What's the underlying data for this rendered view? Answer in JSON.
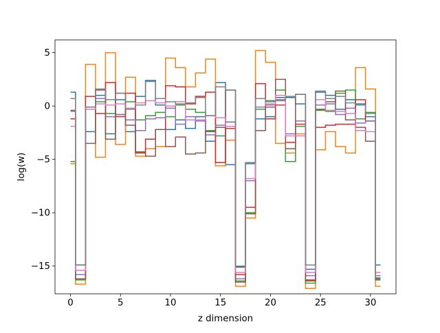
{
  "chart_data": {
    "type": "line",
    "drawstyle": "steps-mid",
    "xlabel": "z dimension",
    "ylabel": "log(w)",
    "xlim": [
      -1.55,
      32.55
    ],
    "ylim": [
      -17.6,
      6.2
    ],
    "xticks": [
      0,
      5,
      10,
      15,
      20,
      25,
      30
    ],
    "yticks": [
      5,
      0,
      -5,
      -10,
      -15
    ],
    "xtick_labels": [
      "0",
      "5",
      "10",
      "15",
      "20",
      "25",
      "30"
    ],
    "ytick_labels": [
      "5",
      "0",
      "−5",
      "−10",
      "−15"
    ],
    "grid": false,
    "legend": "none",
    "x": [
      0,
      1,
      2,
      3,
      4,
      5,
      6,
      7,
      8,
      9,
      10,
      11,
      12,
      13,
      14,
      15,
      16,
      17,
      18,
      19,
      20,
      21,
      22,
      23,
      24,
      25,
      26,
      27,
      28,
      29,
      30,
      31
    ],
    "series": [
      {
        "color": "#1f77b4",
        "values": [
          1.3,
          -14.9,
          -2.4,
          1.0,
          -2.6,
          0.6,
          -2.4,
          0.9,
          2.4,
          0.1,
          -2.2,
          -1.3,
          -2.1,
          -1.0,
          -3.3,
          2.2,
          -5.5,
          -15.1,
          -5.4,
          -1.2,
          -1.0,
          0.8,
          0.8,
          0.2,
          -15.3,
          1.3,
          1.0,
          -0.3,
          0.6,
          0.2,
          -1.0,
          -14.9
        ]
      },
      {
        "color": "#ff7f0e",
        "values": [
          -5.4,
          -16.7,
          3.9,
          -4.8,
          5.0,
          -3.6,
          2.7,
          -4.7,
          -4.0,
          -3.8,
          4.5,
          3.6,
          1.8,
          3.1,
          4.4,
          -5.6,
          -3.2,
          -16.9,
          -10.5,
          5.2,
          4.1,
          -3.5,
          -4.4,
          -2.6,
          -17.1,
          -4.1,
          -2.4,
          -3.8,
          -4.4,
          3.6,
          1.6,
          -16.9
        ]
      },
      {
        "color": "#2ca02c",
        "values": [
          -5.2,
          -16.3,
          -0.3,
          0.4,
          -0.7,
          -0.8,
          0.4,
          -1.3,
          -0.9,
          -0.6,
          -1.0,
          0.1,
          -0.3,
          -0.6,
          -2.3,
          -2.8,
          -1.5,
          -16.4,
          -10.0,
          -0.3,
          0.5,
          1.5,
          -5.2,
          -1.9,
          -16.6,
          -0.4,
          -0.5,
          1.2,
          1.5,
          -1.2,
          -0.6,
          -16.2
        ]
      },
      {
        "color": "#d62728",
        "values": [
          -1.2,
          -16.2,
          0.9,
          -0.7,
          2.2,
          -1.0,
          1.2,
          -4.4,
          -3.1,
          -2.2,
          1.9,
          1.8,
          0.2,
          0.9,
          1.3,
          -5.3,
          -2.1,
          -15.8,
          -9.5,
          2.1,
          -1.2,
          0.1,
          -3.4,
          -1.7,
          -16.3,
          -2.0,
          -1.8,
          -1.7,
          -1.7,
          0.6,
          -1.4,
          -16.1
        ]
      },
      {
        "color": "#9467bd",
        "values": [
          -0.5,
          -15.8,
          -0.1,
          0.7,
          -1.0,
          -0.8,
          -1.3,
          -2.3,
          -1.2,
          -1.1,
          -0.2,
          -1.7,
          -1.0,
          -1.4,
          -2.7,
          -1.8,
          -1.5,
          -16.2,
          -7.0,
          -0.1,
          0.1,
          0.6,
          -2.6,
          -1.4,
          -15.9,
          0.1,
          0.2,
          -0.8,
          -0.2,
          -1.6,
          -1.4,
          -15.9
        ]
      },
      {
        "color": "#8c564b",
        "values": [
          -0.4,
          -16.2,
          -3.5,
          1.5,
          -3.1,
          1.2,
          -1.8,
          -4.3,
          -4.7,
          -2.2,
          -3.8,
          -2.9,
          -4.5,
          -4.4,
          -2.4,
          -2.0,
          1.5,
          -16.5,
          -10.1,
          -2.3,
          -0.1,
          2.5,
          -4.0,
          1.1,
          -16.4,
          -0.3,
          0.4,
          1.4,
          -1.3,
          -2.0,
          -3.3,
          -16.3
        ]
      },
      {
        "color": "#e377c2",
        "values": [
          -1.9,
          -15.4,
          -0.3,
          0.2,
          0.1,
          0.2,
          -0.2,
          0.3,
          0.5,
          0.3,
          0.0,
          0.4,
          -1.3,
          -1.3,
          -0.9,
          -1.1,
          -1.9,
          -15.6,
          -6.8,
          0.7,
          0.2,
          1.0,
          -2.8,
          -2.8,
          -15.6,
          0.6,
          -0.4,
          -0.5,
          -0.7,
          -2.3,
          -2.4,
          -15.6
        ]
      },
      {
        "color": "#7f7f7f",
        "values": [
          0.7,
          -14.9,
          -0.1,
          1.6,
          0.6,
          1.2,
          -0.3,
          0.1,
          2.3,
          0.7,
          0.4,
          0.2,
          0.3,
          0.8,
          -0.9,
          1.8,
          1.5,
          -15.0,
          -5.3,
          0.7,
          0.4,
          0.5,
          0.9,
          1.1,
          -14.9,
          1.4,
          0.7,
          0.9,
          0.3,
          0.1,
          -0.7,
          -16.1
        ]
      }
    ]
  }
}
